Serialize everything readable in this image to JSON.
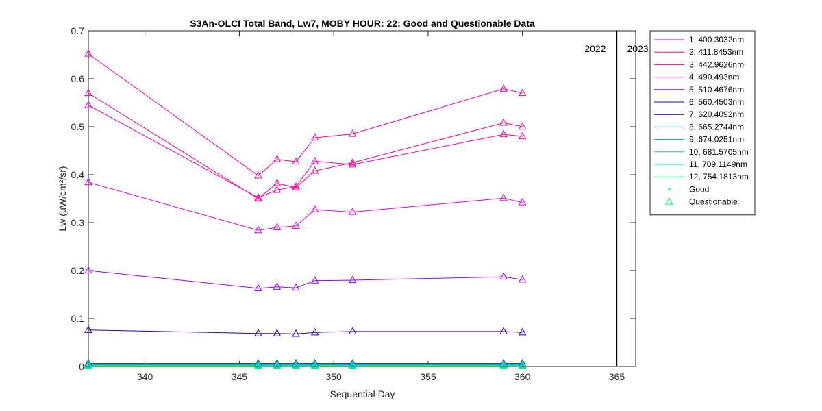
{
  "chart_data": {
    "type": "line",
    "title": "S3An-OLCI Total Band,  Lw7, MOBY HOUR: 22;  Good and Questionable Data",
    "xlabel": "Sequential Day",
    "ylabel": "Lw (µW/cm²/sr)",
    "xlim": [
      337,
      366
    ],
    "ylim": [
      0,
      0.7
    ],
    "xticks": [
      "340",
      "345",
      "350",
      "355",
      "360",
      "365"
    ],
    "yticks": [
      "0",
      "0.1",
      "0.2",
      "0.3",
      "0.4",
      "0.5",
      "0.6",
      "0.7"
    ],
    "grid": false,
    "legend_position": "outside-right",
    "year_markers": [
      {
        "x": 365,
        "label_left": "2022",
        "label_right": "2023"
      }
    ],
    "x": [
      337,
      346,
      347,
      348,
      349,
      351,
      359,
      360
    ],
    "series": [
      {
        "name": "1, 400.3032nm",
        "color": "#ff0080",
        "values": [
          0.57,
          0.35,
          0.382,
          0.373,
          0.408,
          0.425,
          0.508,
          0.5
        ]
      },
      {
        "name": "2, 411.8453nm",
        "color": "#ff0099",
        "values": [
          0.652,
          0.398,
          0.432,
          0.427,
          0.477,
          0.485,
          0.579,
          0.57
        ]
      },
      {
        "name": "3, 442.9626nm",
        "color": "#ff00b3",
        "values": [
          0.545,
          0.352,
          0.368,
          0.375,
          0.428,
          0.421,
          0.484,
          0.48
        ]
      },
      {
        "name": "4,  490.493nm",
        "color": "#e600e6",
        "values": [
          0.384,
          0.284,
          0.29,
          0.293,
          0.327,
          0.322,
          0.351,
          0.342
        ]
      },
      {
        "name": "5, 510.4676nm",
        "color": "#9900ff",
        "values": [
          0.2,
          0.163,
          0.166,
          0.164,
          0.179,
          0.18,
          0.187,
          0.181
        ]
      },
      {
        "name": "6, 560.4503nm",
        "color": "#330099",
        "values": [
          0.076,
          0.069,
          0.069,
          0.068,
          0.071,
          0.073,
          0.073,
          0.071
        ]
      },
      {
        "name": "7, 620.4092nm",
        "color": "#0000b3",
        "values": [
          0.006,
          0.006,
          0.006,
          0.006,
          0.006,
          0.006,
          0.006,
          0.006
        ]
      },
      {
        "name": "8, 665.2744nm",
        "color": "#0066cc",
        "values": [
          0.005,
          0.005,
          0.005,
          0.005,
          0.005,
          0.005,
          0.005,
          0.005
        ]
      },
      {
        "name": "9, 674.0251nm",
        "color": "#0099e6",
        "values": [
          0.004,
          0.004,
          0.004,
          0.004,
          0.004,
          0.004,
          0.004,
          0.004
        ]
      },
      {
        "name": "10, 681.5705nm",
        "color": "#00cccc",
        "values": [
          0.003,
          0.003,
          0.003,
          0.003,
          0.003,
          0.003,
          0.003,
          0.003
        ]
      },
      {
        "name": "11, 709.1149nm",
        "color": "#00e699",
        "values": [
          0.002,
          0.002,
          0.002,
          0.002,
          0.002,
          0.002,
          0.002,
          0.002
        ]
      },
      {
        "name": "12, 754.1813nm",
        "color": "#00ff66",
        "values": [
          0.001,
          0.001,
          0.001,
          0.001,
          0.001,
          0.001,
          0.001,
          0.001
        ]
      }
    ],
    "marker_legend": [
      {
        "name": "Good",
        "marker": "dot"
      },
      {
        "name": "Questionable",
        "marker": "triangle"
      }
    ]
  }
}
